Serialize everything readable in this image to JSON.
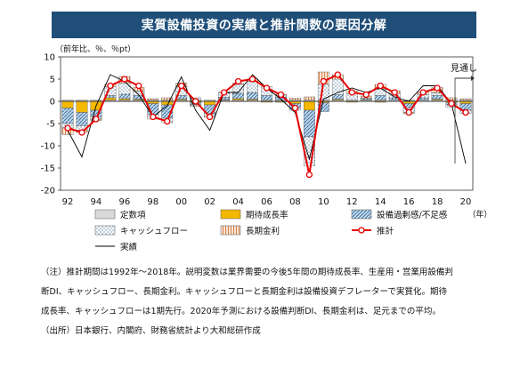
{
  "header": {
    "title": "実質設備投資の実績と推計関数の要因分解"
  },
  "chart_data": {
    "type": "bar",
    "stacked": true,
    "unit_label": "（前年比、％、％pt）",
    "ylim": [
      -20,
      10
    ],
    "yticks": [
      10,
      5,
      0,
      -5,
      -10,
      -15,
      -20
    ],
    "x_start": 1992,
    "x_end": 2020,
    "xtick_labels": [
      "92",
      "94",
      "96",
      "98",
      "00",
      "02",
      "04",
      "06",
      "08",
      "10",
      "12",
      "14",
      "16",
      "18",
      "20"
    ],
    "year_suffix": "（年）",
    "forecast_label": "見通し",
    "grid": false,
    "legend_position": "bottom",
    "categories": [
      "1992",
      "1993",
      "1994",
      "1995",
      "1996",
      "1997",
      "1998",
      "1999",
      "2000",
      "2001",
      "2002",
      "2003",
      "2004",
      "2005",
      "2006",
      "2007",
      "2008",
      "2009",
      "2010",
      "2011",
      "2012",
      "2013",
      "2014",
      "2015",
      "2016",
      "2017",
      "2018",
      "2019",
      "2020"
    ],
    "series": [
      {
        "name": "定数項",
        "key": "const",
        "color": "#d9d9d9",
        "values": [
          0.3,
          0.3,
          0.3,
          0.3,
          0.3,
          0.3,
          0.3,
          0.3,
          0.3,
          0.3,
          0.3,
          0.3,
          0.3,
          0.3,
          0.3,
          0.3,
          0.3,
          0.3,
          0.3,
          0.3,
          0.3,
          0.3,
          0.3,
          0.3,
          0.3,
          0.3,
          0.3,
          0.3,
          0.3
        ]
      },
      {
        "name": "期待成長率",
        "key": "growth",
        "color": "#f5b800",
        "values": [
          -1.5,
          -2.5,
          -2.0,
          0.5,
          0.3,
          0.2,
          -0.5,
          -0.8,
          0.2,
          -0.3,
          -0.8,
          0.1,
          0.3,
          0.2,
          -0.2,
          -0.2,
          -0.5,
          -2.0,
          -0.3,
          0.2,
          -0.2,
          0.1,
          -0.2,
          0.0,
          -0.5,
          0.0,
          0.2,
          -0.3,
          -0.5
        ]
      },
      {
        "name": "設備過剰感/不足感",
        "key": "capacity",
        "color": "#9dc3e6",
        "values": [
          -3.5,
          -3.0,
          -1.5,
          0.5,
          1.0,
          0.8,
          -2.5,
          -3.0,
          0.8,
          -0.5,
          -2.0,
          0.5,
          1.2,
          1.5,
          1.0,
          0.6,
          -1.0,
          -6.0,
          -2.0,
          1.0,
          0.0,
          0.3,
          1.0,
          0.5,
          -1.0,
          0.5,
          0.8,
          -0.5,
          -1.5
        ]
      },
      {
        "name": "キャッシュフロー",
        "key": "cashflow",
        "color": "#dae8f7",
        "values": [
          -1.0,
          -1.0,
          -0.5,
          2.0,
          2.5,
          1.0,
          -1.0,
          -1.0,
          2.0,
          0.5,
          -0.5,
          1.0,
          2.0,
          2.5,
          2.0,
          0.5,
          -0.5,
          -6.5,
          3.5,
          3.5,
          1.5,
          0.0,
          1.5,
          1.0,
          -1.0,
          0.8,
          0.6,
          -0.5,
          -0.7
        ]
      },
      {
        "name": "長期金利",
        "key": "rate",
        "color": "#f8cbad",
        "values": [
          -1.5,
          -0.5,
          -0.3,
          0.5,
          1.5,
          0.8,
          0.3,
          0.5,
          0.8,
          -0.3,
          -0.3,
          0.2,
          0.3,
          0.5,
          0.0,
          0.2,
          0.4,
          0.7,
          2.8,
          1.0,
          0.5,
          0.5,
          1.0,
          0.6,
          -0.3,
          0.5,
          1.2,
          0.5,
          0.3
        ]
      }
    ],
    "estimate": {
      "name": "推計",
      "color": "#e60000",
      "values": [
        -6.0,
        -7.0,
        -4.0,
        3.5,
        5.0,
        3.5,
        -3.5,
        -4.5,
        3.5,
        0.0,
        -3.5,
        2.0,
        4.5,
        5.0,
        3.0,
        1.5,
        -1.5,
        -16.5,
        4.5,
        6.0,
        2.0,
        1.5,
        3.5,
        2.0,
        -2.5,
        2.0,
        3.0,
        -0.5,
        -2.5
      ]
    },
    "actual": {
      "name": "実績",
      "color": "#000000",
      "values": [
        -6.5,
        -12.5,
        -1.0,
        6.0,
        4.5,
        1.5,
        -3.5,
        -1.0,
        5.5,
        -2.0,
        -6.5,
        2.0,
        2.0,
        6.0,
        3.0,
        0.5,
        -2.5,
        -13.0,
        0.5,
        2.0,
        3.0,
        2.0,
        3.0,
        1.0,
        0.0,
        3.5,
        3.5,
        -0.5,
        -14.0
      ]
    }
  },
  "notes": {
    "line1": "（注）推計期間は1992年～2018年。説明変数は業界需要の今後5年間の期待成長率、生産用・営業用設備判",
    "line2": "断DI、キャッシュフロー、長期金利。キャッシュフローと長期金利は設備投資デフレーターで実質化。期待",
    "line3": "成長率、キャッシュフローは1期先行。2020年予測における設備判断DI、長期金利は、足元までの平均。",
    "source": "（出所）日本銀行、内閣府、財務省統計より大和総研作成"
  }
}
